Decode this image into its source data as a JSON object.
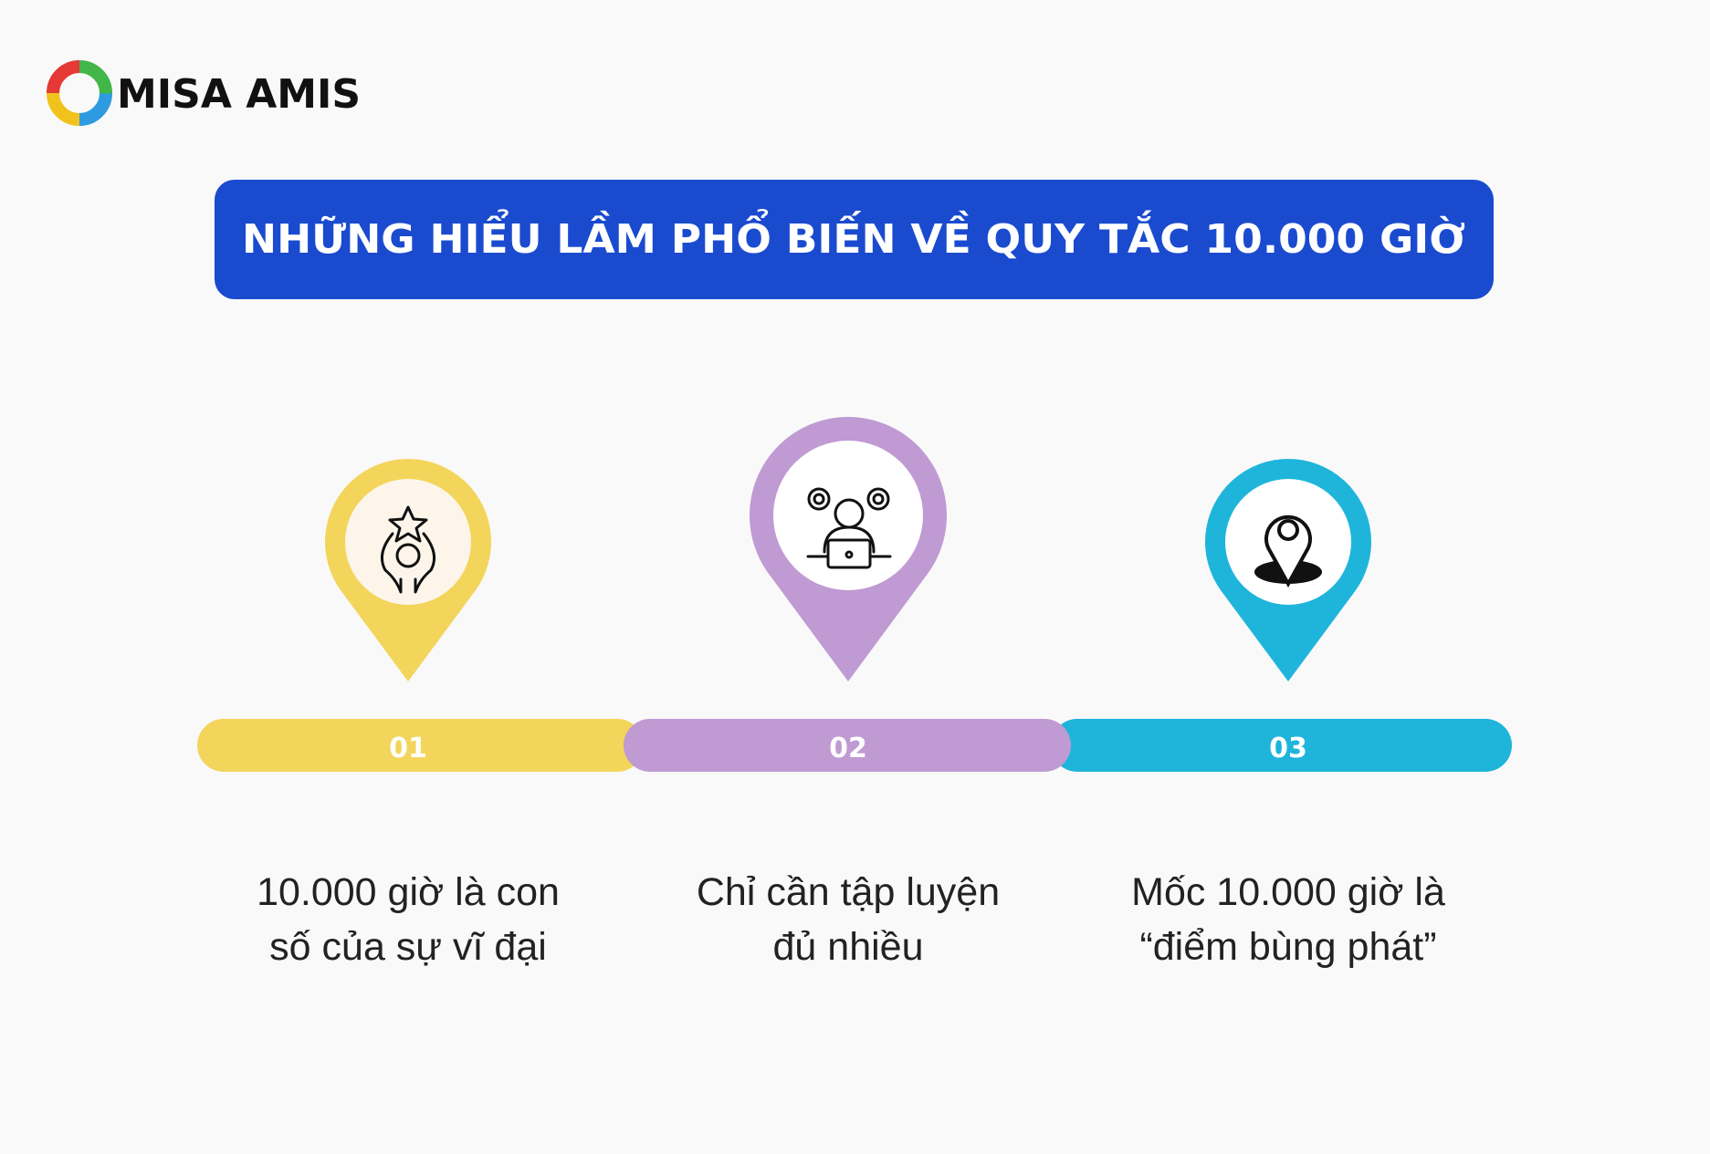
{
  "logo": {
    "text": "MISA AMIS"
  },
  "title": "NHỮNG HIỂU LẦM PHỔ BIẾN VỀ QUY TẮC 10.000 GIỜ",
  "items": [
    {
      "number": "01",
      "text": [
        "10.000 giờ là con",
        "số của sự vĩ đại"
      ]
    },
    {
      "number": "02",
      "text": [
        "Chỉ cần tập luyện",
        "đủ nhiều"
      ]
    },
    {
      "number": "03",
      "text": [
        "Mốc 10.000 giờ là",
        "“điểm bùng phát”"
      ]
    }
  ]
}
